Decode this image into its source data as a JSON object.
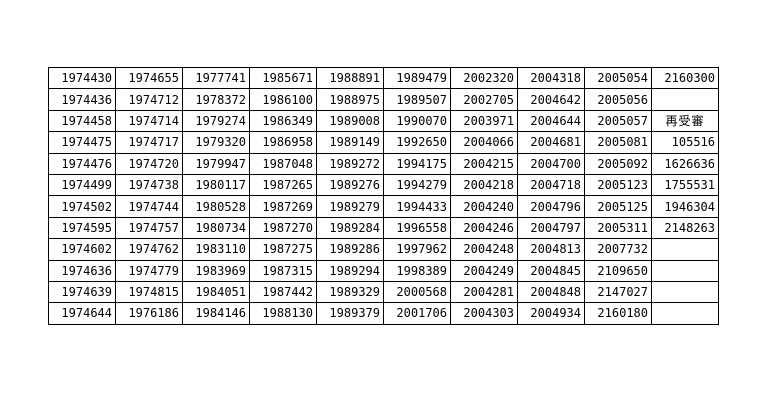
{
  "page": {
    "background_color": "#ffffff"
  },
  "table": {
    "border_color": "#000000",
    "text_color": "#000000",
    "cell_background": "#ffffff",
    "column_count": 10,
    "row_count": 12,
    "rows": [
      [
        "1974430",
        "1974655",
        "1977741",
        "1985671",
        "1988891",
        "1989479",
        "2002320",
        "2004318",
        "2005054",
        "2160300"
      ],
      [
        "1974436",
        "1974712",
        "1978372",
        "1986100",
        "1988975",
        "1989507",
        "2002705",
        "2004642",
        "2005056",
        ""
      ],
      [
        "1974458",
        "1974714",
        "1979274",
        "1986349",
        "1989008",
        "1990070",
        "2003971",
        "2004644",
        "2005057",
        "再受審"
      ],
      [
        "1974475",
        "1974717",
        "1979320",
        "1986958",
        "1989149",
        "1992650",
        "2004066",
        "2004681",
        "2005081",
        "105516"
      ],
      [
        "1974476",
        "1974720",
        "1979947",
        "1987048",
        "1989272",
        "1994175",
        "2004215",
        "2004700",
        "2005092",
        "1626636"
      ],
      [
        "1974499",
        "1974738",
        "1980117",
        "1987265",
        "1989276",
        "1994279",
        "2004218",
        "2004718",
        "2005123",
        "1755531"
      ],
      [
        "1974502",
        "1974744",
        "1980528",
        "1987269",
        "1989279",
        "1994433",
        "2004240",
        "2004796",
        "2005125",
        "1946304"
      ],
      [
        "1974595",
        "1974757",
        "1980734",
        "1987270",
        "1989284",
        "1996558",
        "2004246",
        "2004797",
        "2005311",
        "2148263"
      ],
      [
        "1974602",
        "1974762",
        "1983110",
        "1987275",
        "1989286",
        "1997962",
        "2004248",
        "2004813",
        "2007732",
        ""
      ],
      [
        "1974636",
        "1974779",
        "1983969",
        "1987315",
        "1989294",
        "1998389",
        "2004249",
        "2004845",
        "2109650",
        ""
      ],
      [
        "1974639",
        "1974815",
        "1984051",
        "1987442",
        "1989329",
        "2000568",
        "2004281",
        "2004848",
        "2147027",
        ""
      ],
      [
        "1974644",
        "1976186",
        "1984146",
        "1988130",
        "1989379",
        "2001706",
        "2004303",
        "2004934",
        "2160180",
        ""
      ]
    ]
  }
}
